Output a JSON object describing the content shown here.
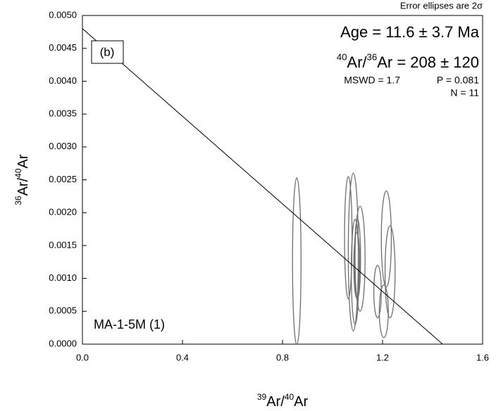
{
  "chart_data": {
    "type": "ellipse",
    "note_top": "Error ellipses are 2σ",
    "panel_label": "(b)",
    "age": "Age = 11.6 ± 3.7 Ma",
    "ratio_parts": [
      "40",
      "Ar/",
      "36",
      "Ar = 208 ± 120"
    ],
    "mswd": "MSWD = 1.7",
    "p_value": "P = 0.081",
    "n": "N = 11",
    "sample": "MA-1-5M (1)",
    "x_label_parts": [
      "39",
      "Ar/",
      "40",
      "Ar"
    ],
    "y_label_parts": [
      "36",
      "Ar/",
      "40",
      "Ar"
    ],
    "xlim": [
      0,
      1.6
    ],
    "ylim": [
      0,
      0.005
    ],
    "xticks": [
      {
        "value": 0,
        "label": "0.0"
      },
      0.4,
      0.8,
      1.2,
      1.6
    ],
    "yticks": [
      {
        "value": 0,
        "label": "0.0000"
      },
      {
        "value": 0.0005,
        "label": "0.0005"
      },
      {
        "value": 0.001,
        "label": "0.0010"
      },
      {
        "value": 0.0015,
        "label": "0.0015"
      },
      {
        "value": 0.002,
        "label": "0.0020"
      },
      {
        "value": 0.0025,
        "label": "0.0025"
      },
      {
        "value": 0.003,
        "label": "0.0030"
      },
      {
        "value": 0.0035,
        "label": "0.0035"
      },
      {
        "value": 0.004,
        "label": "0.0040"
      },
      {
        "value": 0.0045,
        "label": "0.0045"
      },
      {
        "value": 0.005,
        "label": "0.0050"
      }
    ],
    "color": "#6e6e6e",
    "x": [
      0.857,
      1.063,
      1.083,
      1.09,
      1.1,
      1.11,
      1.097,
      1.215,
      1.23,
      1.18,
      1.205
    ],
    "x_err": [
      0.017,
      0.015,
      0.02,
      0.015,
      0.012,
      0.02,
      0.012,
      0.02,
      0.02,
      0.015,
      0.018
    ],
    "y": [
      0.00126,
      0.00162,
      0.0014,
      0.0011,
      0.0013,
      0.0013,
      0.0012,
      0.0016,
      0.0011,
      0.0008,
      0.0005
    ],
    "y_err": [
      0.00127,
      0.00093,
      0.0012,
      0.0008,
      0.0006,
      0.0008,
      0.0005,
      0.00073,
      0.0007,
      0.0004,
      0.0004
    ],
    "isochron": {
      "y_intercept": 0.0048,
      "x_intercept": 1.44
    }
  }
}
